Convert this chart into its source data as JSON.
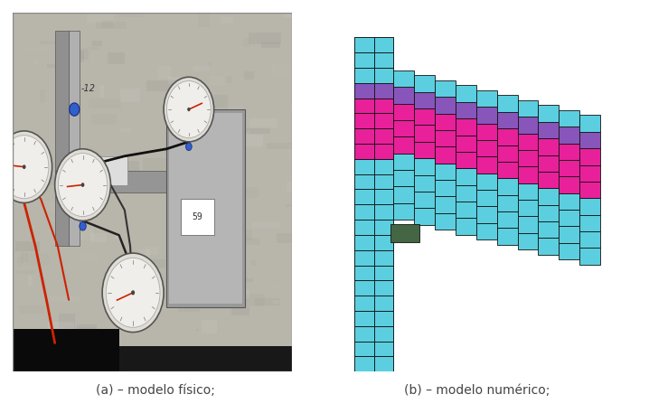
{
  "caption_a": "(a) – modelo físico;",
  "caption_b": "(b) – modelo numérico;",
  "caption_fontsize": 10,
  "caption_color": "#444444",
  "bg_color": "#ffffff",
  "cyan": "#5bcfdf",
  "magenta": "#e8209a",
  "purple": "#8855bb",
  "grid_line_color": "#111111",
  "fig_width": 7.18,
  "fig_height": 4.57,
  "concrete_color": "#b8b5aa",
  "concrete_dark": "#9a9690",
  "metal_color": "#a0a0a0",
  "metal_dark": "#787878",
  "gauge_face": "#f0eeea",
  "gauge_rim": "#cccccc",
  "gauge_needle": "#cc2200",
  "wire_dark": "#111111",
  "wire_red": "#cc2200",
  "floor_color": "#181818"
}
